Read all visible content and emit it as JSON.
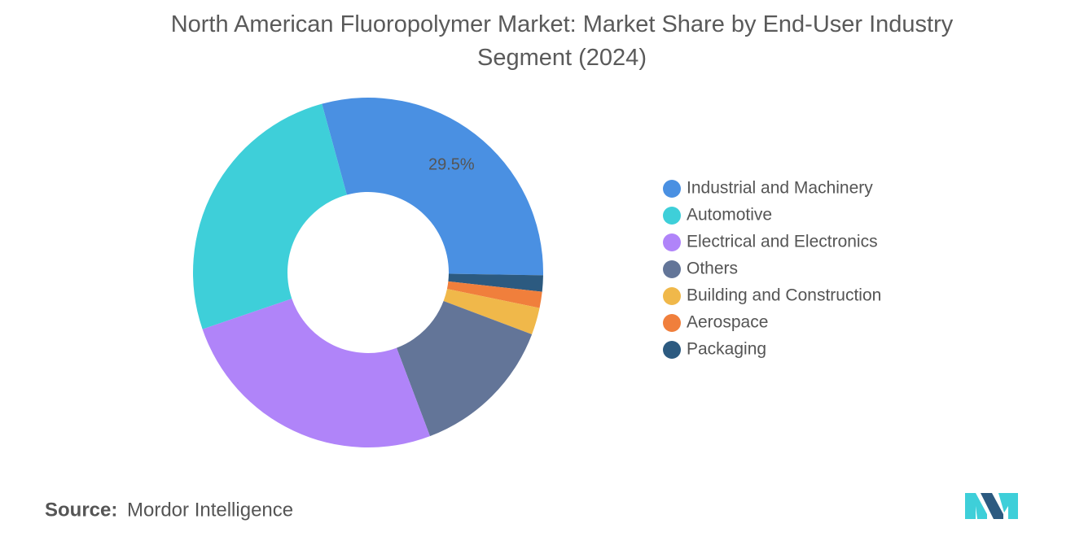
{
  "chart_data": {
    "type": "donut",
    "title": "North American Fluoropolymer Market: Market Share by End-User Industry Segment (2024)",
    "categories": [
      "Industrial and Machinery",
      "Automotive",
      "Electrical and Electronics",
      "Others",
      "Building and Construction",
      "Aerospace",
      "Packaging"
    ],
    "values": [
      29.5,
      26,
      25.5,
      13.5,
      2.5,
      1.5,
      1.5
    ],
    "value_labels": [
      "29.5%",
      null,
      null,
      null,
      null,
      null,
      null
    ],
    "colors": [
      "#4a90e2",
      "#3ecfd9",
      "#b084f9",
      "#637598",
      "#f0b84a",
      "#f07f3c",
      "#2c5a80"
    ],
    "legend": "right"
  },
  "source_label": "Source:",
  "source": "Mordor Intelligence"
}
